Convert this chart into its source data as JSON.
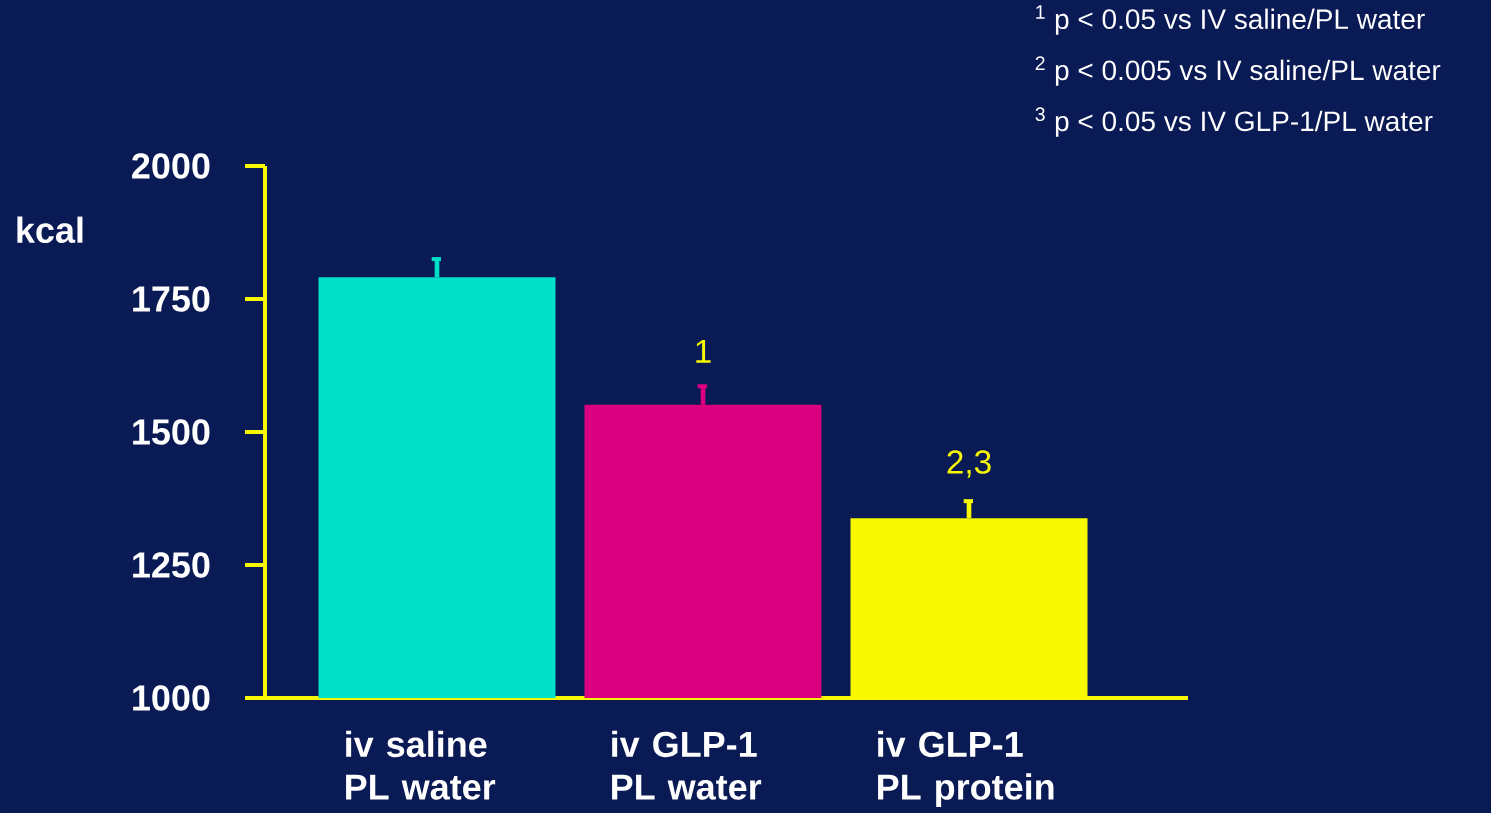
{
  "chart_data": {
    "type": "bar",
    "ylabel": "kcal",
    "categories": [
      "iv saline PL water",
      "iv GLP-1 PL water",
      "iv GLP-1 PL protein"
    ],
    "values": [
      1791,
      1551,
      1338
    ],
    "colors": [
      "#00e0c8",
      "#dc0080",
      "#f8f800"
    ],
    "errors": [
      [
        1791,
        1825
      ],
      [
        1551,
        1586
      ],
      [
        1338,
        1370
      ]
    ],
    "ylim": [
      1000,
      2000
    ],
    "yticks": [
      1000,
      1250,
      1500,
      1750,
      2000
    ],
    "grid": false,
    "annotations": [
      "$^{1}$ p < 0.05 vs IV saline/PL water",
      "$^{2}$ p < 0.005 vs IV saline/PL water",
      "$^{3}$ p < 0.05 vs IV GLP-1/PL water",
      "1",
      "2,3"
    ]
  }
}
